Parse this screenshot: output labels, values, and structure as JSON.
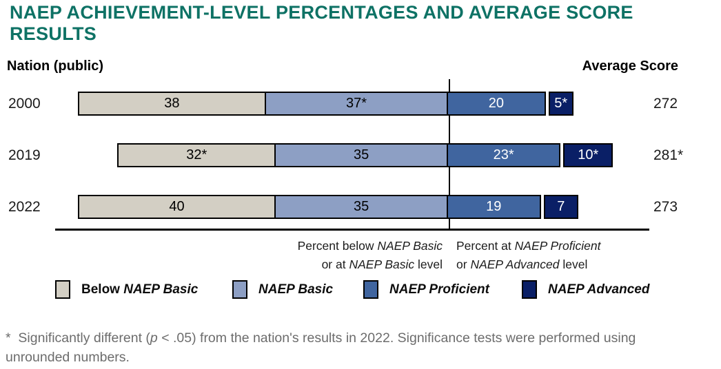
{
  "title": "NAEP ACHIEVEMENT-LEVEL PERCENTAGES AND AVERAGE SCORE RESULTS",
  "title_color": "#0e7265",
  "header": {
    "left": "Nation (public)",
    "right": "Average Score"
  },
  "chart_data": {
    "type": "bar",
    "subtype": "horizontal-stacked-diverging",
    "title": "NAEP ACHIEVEMENT-LEVEL PERCENTAGES AND AVERAGE SCORE RESULTS",
    "categories": [
      "2000",
      "2019",
      "2022"
    ],
    "series": [
      {
        "name": "Below NAEP Basic",
        "color": "#d3cfc4",
        "text_color": "#000000",
        "values": [
          38,
          32,
          40
        ],
        "labels": [
          "38",
          "32*",
          "40"
        ]
      },
      {
        "name": "NAEP Basic",
        "color": "#8d9fc4",
        "text_color": "#000000",
        "values": [
          37,
          35,
          35
        ],
        "labels": [
          "37*",
          "35",
          "35"
        ]
      },
      {
        "name": "NAEP Proficient",
        "color": "#40659f",
        "text_color": "#ffffff",
        "values": [
          20,
          23,
          19
        ],
        "labels": [
          "20",
          "23*",
          "19"
        ]
      },
      {
        "name": "NAEP Advanced",
        "color": "#0a1f66",
        "text_color": "#ffffff",
        "values": [
          5,
          10,
          7
        ],
        "labels": [
          "5*",
          "10*",
          "7"
        ]
      }
    ],
    "average_scores": [
      "272",
      "281*",
      "273"
    ],
    "pivot_note": "bars are aligned so the boundary between NAEP Basic and NAEP Proficient sits on the vertical divider line",
    "axis_captions": {
      "left_line1": "Percent below NAEP Basic",
      "left_line2": "or at NAEP Basic level",
      "right_line1": "Percent at NAEP Proficient",
      "right_line2": "or NAEP Advanced level"
    },
    "legend_position": "bottom"
  },
  "legend": [
    {
      "label": "Below NAEP Basic",
      "color": "#d3cfc4"
    },
    {
      "label": "NAEP Basic",
      "color": "#8d9fc4"
    },
    {
      "label": "NAEP Proficient",
      "color": "#40659f"
    },
    {
      "label": "NAEP Advanced",
      "color": "#0a1f66"
    }
  ],
  "footnote": "*  Significantly different (p < .05) from the nation's results in 2022. Significance tests were performed using unrounded numbers."
}
